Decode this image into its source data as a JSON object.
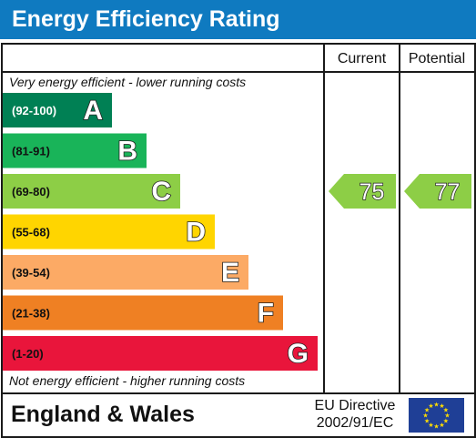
{
  "header": {
    "title": "Energy Efficiency Rating"
  },
  "columns": {
    "current": "Current",
    "potential": "Potential"
  },
  "notes": {
    "top": "Very energy efficient - lower running costs",
    "bottom": "Not energy efficient - higher running costs"
  },
  "footer": {
    "country": "England & Wales",
    "directive_line1": "EU Directive",
    "directive_line2": "2002/91/EC"
  },
  "colors": {
    "header": "#0f7ac0",
    "flag": "#1f3f96",
    "star": "#ffdd00"
  },
  "chart_data": {
    "type": "bar",
    "categories": [
      "A",
      "B",
      "C",
      "D",
      "E",
      "F",
      "G"
    ],
    "ranges": [
      "(92-100)",
      "(81-91)",
      "(69-80)",
      "(55-68)",
      "(39-54)",
      "(21-38)",
      "(1-20)"
    ],
    "band_colors": [
      "#008054",
      "#19b459",
      "#8dce46",
      "#ffd500",
      "#fcaa65",
      "#ef8023",
      "#e9153b"
    ],
    "current": {
      "value": 75,
      "band": "C"
    },
    "potential": {
      "value": 77,
      "band": "C"
    }
  }
}
